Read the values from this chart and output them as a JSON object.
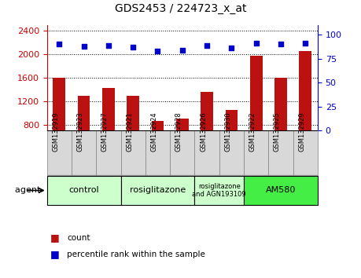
{
  "title": "GDS2453 / 224723_x_at",
  "samples": [
    "GSM132919",
    "GSM132923",
    "GSM132927",
    "GSM132921",
    "GSM132924",
    "GSM132928",
    "GSM132926",
    "GSM132930",
    "GSM132922",
    "GSM132925",
    "GSM132929"
  ],
  "counts": [
    1600,
    1290,
    1430,
    1290,
    870,
    900,
    1360,
    1050,
    1980,
    1600,
    2060
  ],
  "percentiles": [
    90,
    88,
    89,
    87,
    83,
    84,
    89,
    86,
    91,
    90,
    91
  ],
  "ylim_left": [
    700,
    2500
  ],
  "ylim_right": [
    0,
    110
  ],
  "yticks_left": [
    800,
    1200,
    1600,
    2000,
    2400
  ],
  "yticks_right": [
    0,
    25,
    50,
    75,
    100
  ],
  "bar_color": "#bb1111",
  "scatter_color": "#0000cc",
  "grid_color": "#000000",
  "agent_groups": [
    {
      "label": "control",
      "start": 0,
      "end": 3,
      "color": "#ccffcc"
    },
    {
      "label": "rosiglitazone",
      "start": 3,
      "end": 6,
      "color": "#ccffcc"
    },
    {
      "label": "rosiglitazone\nand AGN193109",
      "start": 6,
      "end": 8,
      "color": "#ccffcc"
    },
    {
      "label": "AM580",
      "start": 8,
      "end": 11,
      "color": "#44ee44"
    }
  ],
  "legend_bar_label": "count",
  "legend_scatter_label": "percentile rank within the sample",
  "agent_label": "agent",
  "left_tick_color": "#cc0000",
  "right_tick_color": "#0000cc",
  "sample_box_color": "#d8d8d8",
  "bar_width": 0.5
}
